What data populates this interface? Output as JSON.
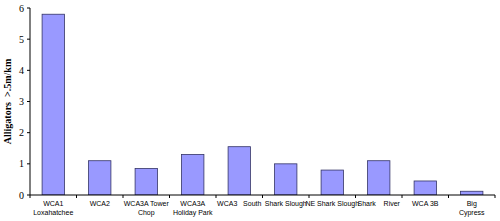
{
  "chart_data": {
    "type": "bar",
    "y_label": "Alligators  >.5m/km",
    "categories": [
      "WCA1\nLoxahatchee",
      "WCA2",
      "WCA3A Tower\nChop",
      "WCA3A\nHoliday Park",
      "WCA3   South",
      "Shark Slough",
      "NE Shark Slough",
      "Shark    River",
      "WCA 3B",
      "Big\nCypress"
    ],
    "values": [
      5.8,
      1.1,
      0.85,
      1.3,
      1.55,
      1.0,
      0.8,
      1.1,
      0.45,
      0.12
    ],
    "color": "#9999ff",
    "ylim": [
      0,
      6
    ],
    "yticks": [
      0,
      1,
      2,
      3,
      4,
      5,
      6
    ],
    "grid": false
  }
}
